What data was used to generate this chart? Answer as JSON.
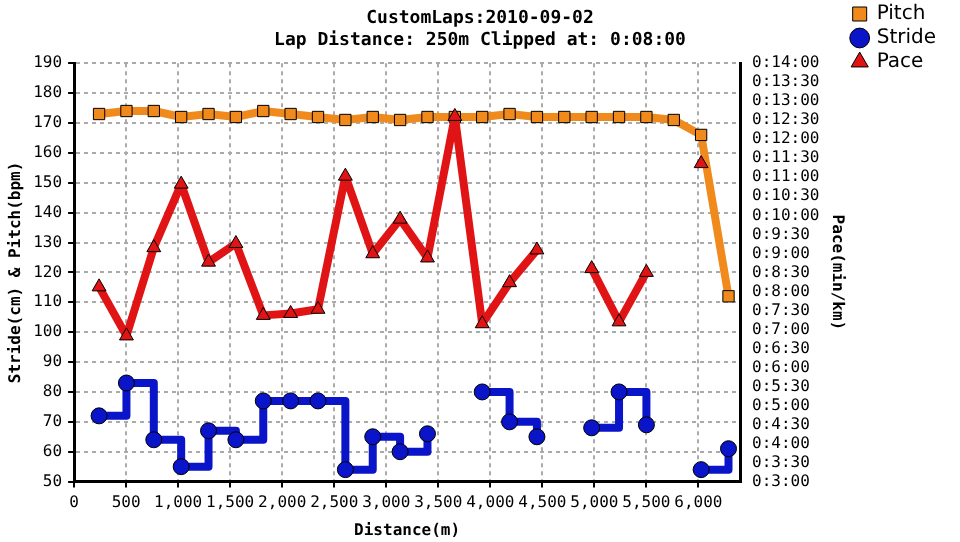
{
  "chart_data": {
    "type": "line",
    "title": "CustomLaps:2010-09-02",
    "subtitle": "Lap Distance: 250m Clipped at: 0:08:00",
    "xlabel": "Distance(m)",
    "ylabel": "Stride(cm) & Pitch(bpm)",
    "y2label": "Pace(min/km)",
    "x": [
      240,
      503,
      766,
      1029,
      1292,
      1555,
      1818,
      2081,
      2344,
      2607,
      2870,
      3133,
      3396,
      3659,
      3922,
      4185,
      4448,
      4711,
      4974,
      5237,
      5500,
      5763,
      6026,
      6289
    ],
    "series": [
      {
        "name": "Pitch",
        "color": "#f08a1c",
        "marker": "square",
        "values": [
          173,
          174,
          174,
          172,
          173,
          172,
          174,
          173,
          172,
          171,
          172,
          171,
          172,
          172,
          172,
          173,
          172,
          172,
          172,
          172,
          172,
          171,
          166,
          112
        ]
      },
      {
        "name": "Stride",
        "type": "step",
        "color": "#0a14c8",
        "marker": "circle",
        "values": [
          72,
          83,
          64,
          55,
          67,
          64,
          77,
          77,
          77,
          54,
          65,
          60,
          66,
          null,
          80,
          70,
          65,
          null,
          68,
          80,
          69,
          null,
          54,
          61
        ]
      },
      {
        "name": "Pace",
        "color": "#e01414",
        "marker": "triangle",
        "axis": "y2",
        "values": [
          8.12,
          6.83,
          9.15,
          10.82,
          8.77,
          9.26,
          7.37,
          7.42,
          7.53,
          11.03,
          8.99,
          9.9,
          8.88,
          12.6,
          7.15,
          8.23,
          9.09,
          null,
          8.6,
          7.2,
          8.5,
          null,
          11.36,
          null
        ]
      }
    ],
    "xlim": [
      0,
      6400
    ],
    "xticks": [
      0,
      500,
      {
        "value": 1000,
        "label": "1,000"
      },
      {
        "value": 1500,
        "label": "1,500"
      },
      {
        "value": 2000,
        "label": "2,000"
      },
      {
        "value": 2500,
        "label": "2,500"
      },
      {
        "value": 3000,
        "label": "3,000"
      },
      {
        "value": 3500,
        "label": "3,500"
      },
      {
        "value": 4000,
        "label": "4,000"
      },
      {
        "value": 4500,
        "label": "4,500"
      },
      {
        "value": 5000,
        "label": "5,000"
      },
      {
        "value": 5500,
        "label": "5,500"
      },
      {
        "value": 6000,
        "label": "6,000"
      }
    ],
    "ylim": [
      50,
      190
    ],
    "yticks": [
      50,
      60,
      70,
      80,
      90,
      100,
      110,
      120,
      130,
      140,
      150,
      160,
      170,
      180,
      190
    ],
    "y2lim": [
      3,
      14
    ],
    "y2ticks": [
      {
        "value": 3,
        "label": "0:3:00"
      },
      {
        "value": 3.5,
        "label": "0:3:30"
      },
      {
        "value": 4,
        "label": "0:4:00"
      },
      {
        "value": 4.5,
        "label": "0:4:30"
      },
      {
        "value": 5,
        "label": "0:5:00"
      },
      {
        "value": 5.5,
        "label": "0:5:30"
      },
      {
        "value": 6,
        "label": "0:6:00"
      },
      {
        "value": 6.5,
        "label": "0:6:30"
      },
      {
        "value": 7,
        "label": "0:7:00"
      },
      {
        "value": 7.5,
        "label": "0:7:30"
      },
      {
        "value": 8,
        "label": "0:8:00"
      },
      {
        "value": 8.5,
        "label": "0:8:30"
      },
      {
        "value": 9,
        "label": "0:9:00"
      },
      {
        "value": 9.5,
        "label": "0:9:30"
      },
      {
        "value": 10,
        "label": "0:10:00"
      },
      {
        "value": 10.5,
        "label": "0:10:30"
      },
      {
        "value": 11,
        "label": "0:11:00"
      },
      {
        "value": 11.5,
        "label": "0:11:30"
      },
      {
        "value": 12,
        "label": "0:12:00"
      },
      {
        "value": 12.5,
        "label": "0:12:30"
      },
      {
        "value": 13,
        "label": "0:13:00"
      },
      {
        "value": 13.5,
        "label": "0:13:30"
      },
      {
        "value": 14,
        "label": "0:14:00"
      }
    ],
    "grid": true,
    "legend": "top right"
  }
}
